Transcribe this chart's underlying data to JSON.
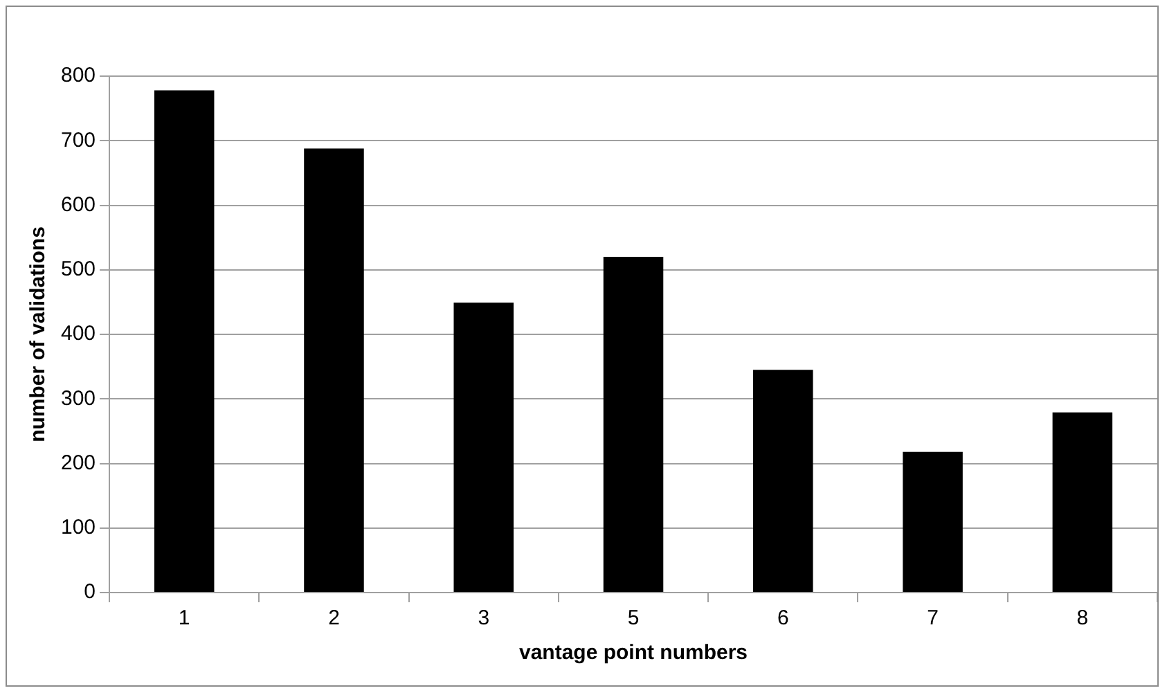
{
  "chart_data": {
    "type": "bar",
    "xlabel": "vantage point numbers",
    "ylabel": "number of validations",
    "categories": [
      "1",
      "2",
      "3",
      "5",
      "6",
      "7",
      "8"
    ],
    "values": [
      778,
      688,
      449,
      520,
      345,
      218,
      279
    ],
    "color": "#000000",
    "ylim": [
      0,
      800
    ],
    "yticks": [
      0,
      100,
      200,
      300,
      400,
      500,
      600,
      700,
      800
    ],
    "grid": "y",
    "legend": false
  }
}
